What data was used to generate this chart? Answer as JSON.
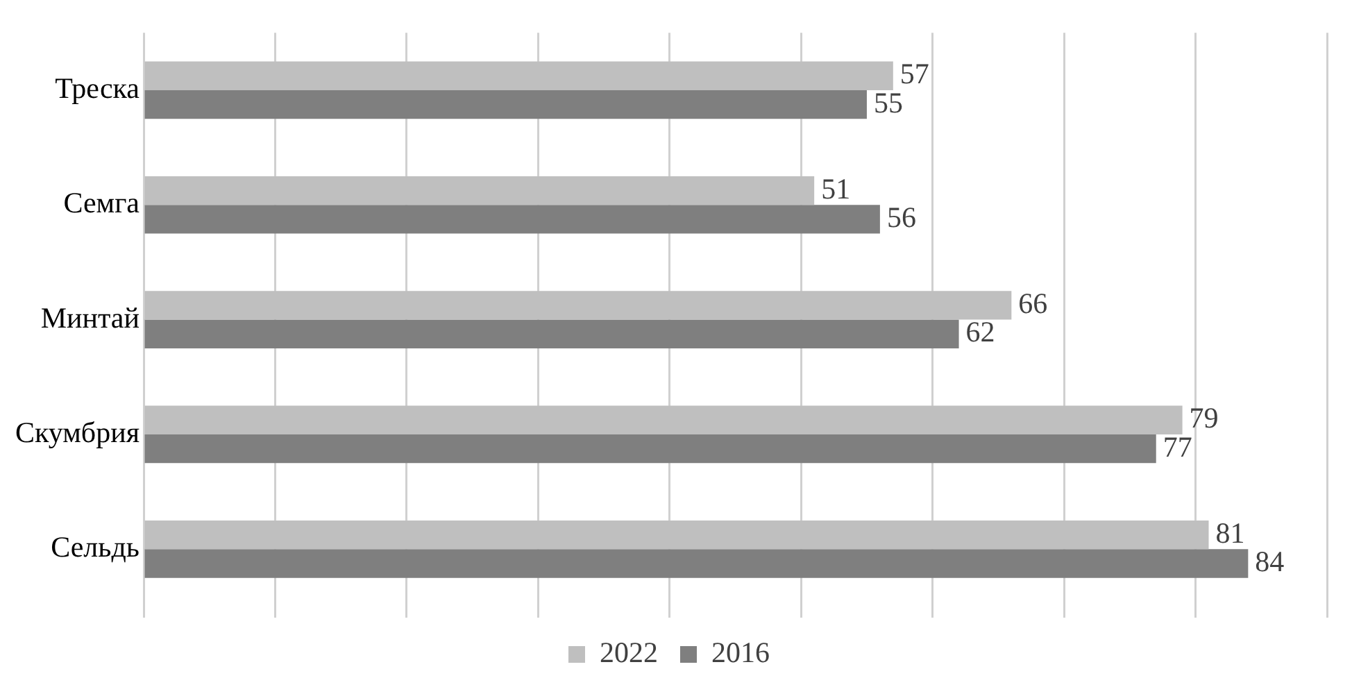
{
  "chart_data": {
    "type": "bar",
    "orientation": "horizontal",
    "categories": [
      "Треска",
      "Семга",
      "Минтай",
      "Скумбрия",
      "Сельдь"
    ],
    "series": [
      {
        "name": "2022",
        "color": "#bfbfbf",
        "values": [
          57,
          51,
          66,
          79,
          81
        ]
      },
      {
        "name": "2016",
        "color": "#7f7f7f",
        "values": [
          55,
          56,
          62,
          77,
          84
        ]
      }
    ],
    "xlim": [
      0,
      90
    ],
    "xticks": [
      {
        "value": 0,
        "label": null
      },
      {
        "value": 10,
        "label": null
      },
      {
        "value": 20,
        "label": null
      },
      {
        "value": 30,
        "label": null
      },
      {
        "value": 40,
        "label": null
      },
      {
        "value": 50,
        "label": null
      },
      {
        "value": 60,
        "label": null
      },
      {
        "value": 70,
        "label": null
      },
      {
        "value": 80,
        "label": null
      },
      {
        "value": 90,
        "label": null
      }
    ],
    "tick_labels": "y",
    "grid": "x",
    "legend": "bottom",
    "data_labels": true
  }
}
